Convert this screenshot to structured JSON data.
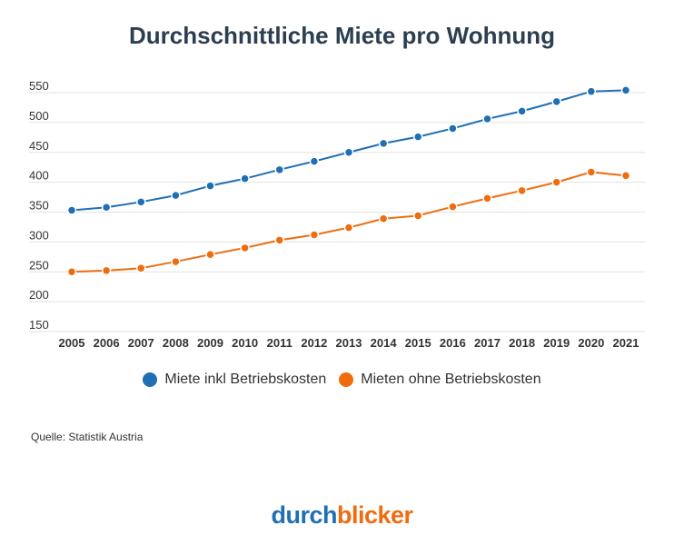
{
  "chart_data": {
    "type": "line",
    "title": "Durchschnittliche Miete pro Wohnung",
    "xlabel": "",
    "ylabel": "",
    "categories": [
      "2005",
      "2006",
      "2007",
      "2008",
      "2009",
      "2010",
      "2011",
      "2012",
      "2013",
      "2014",
      "2015",
      "2016",
      "2017",
      "2018",
      "2019",
      "2020",
      "2021"
    ],
    "ylim": [
      150,
      550
    ],
    "yticks": [
      "150",
      "200",
      "250",
      "300",
      "350",
      "400",
      "450",
      "500",
      "550"
    ],
    "grid": true,
    "legend_position": "bottom",
    "series": [
      {
        "name": "Miete inkl Betriebskosten",
        "color": "#1f6fb5",
        "values": [
          353,
          358,
          367,
          378,
          394,
          406,
          421,
          435,
          450,
          465,
          476,
          490,
          506,
          519,
          535,
          552,
          554
        ]
      },
      {
        "name": "Mieten ohne Betriebskosten",
        "color": "#ef6c0f",
        "values": [
          250,
          252,
          256,
          267,
          279,
          290,
          303,
          312,
          324,
          339,
          344,
          359,
          373,
          386,
          400,
          417,
          411
        ]
      }
    ]
  },
  "source": "Quelle: Statistik Austria",
  "logo": {
    "part1": "durch",
    "part2": "blicker"
  }
}
